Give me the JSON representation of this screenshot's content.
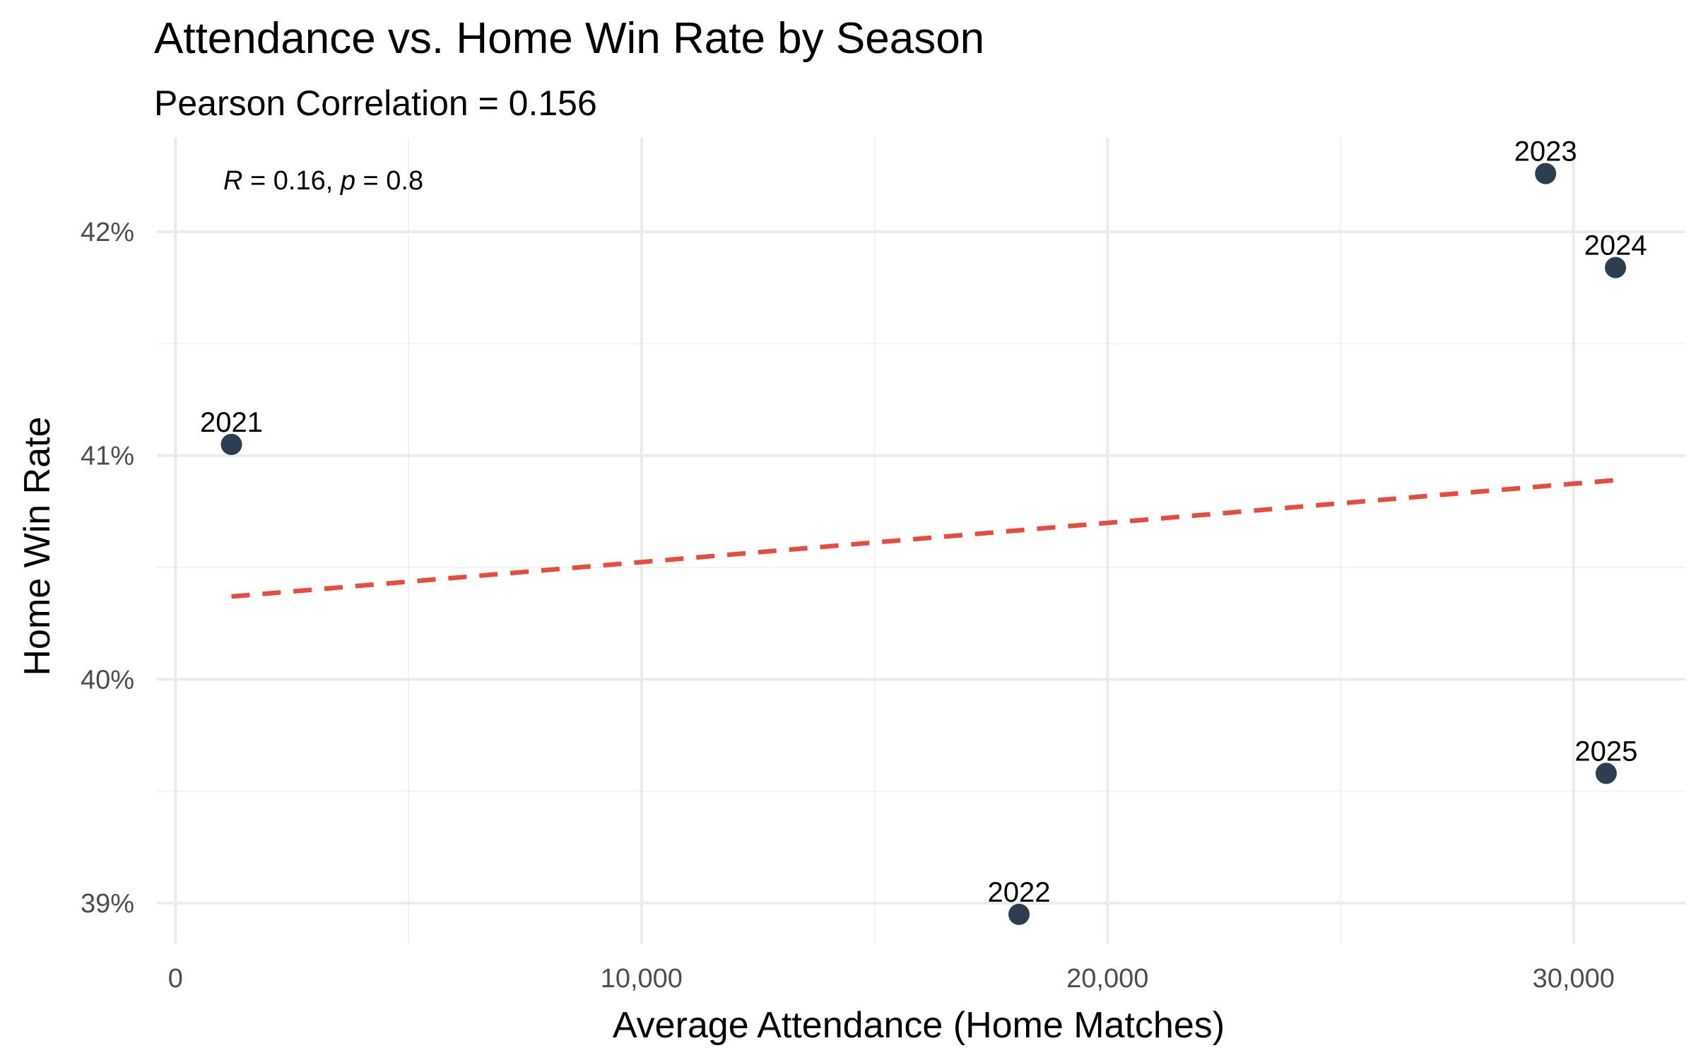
{
  "chart_data": {
    "type": "scatter",
    "title": "Attendance vs. Home Win Rate by Season",
    "subtitle": "Pearson Correlation = 0.156",
    "xlabel": "Average Attendance (Home Matches)",
    "ylabel": "Home Win Rate",
    "xlim": [
      -400,
      32400
    ],
    "ylim": [
      38.82,
      42.42
    ],
    "x_ticks": [
      {
        "value": 0,
        "label": "0"
      },
      {
        "value": 10000,
        "label": "10,000"
      },
      {
        "value": 20000,
        "label": "20,000"
      },
      {
        "value": 30000,
        "label": "30,000"
      }
    ],
    "x_minor_ticks": [
      5000,
      15000,
      25000
    ],
    "y_ticks": [
      {
        "value": 39,
        "label": "39%"
      },
      {
        "value": 40,
        "label": "40%"
      },
      {
        "value": 41,
        "label": "41%"
      },
      {
        "value": 42,
        "label": "42%"
      }
    ],
    "y_minor_ticks": [
      39.5,
      40.5,
      41.5
    ],
    "grid": true,
    "points": [
      {
        "label": "2021",
        "x": 1200,
        "y": 41.05
      },
      {
        "label": "2022",
        "x": 18100,
        "y": 38.95
      },
      {
        "label": "2023",
        "x": 29400,
        "y": 42.26
      },
      {
        "label": "2024",
        "x": 30900,
        "y": 41.84
      },
      {
        "label": "2025",
        "x": 30700,
        "y": 39.58
      }
    ],
    "trend_line": {
      "style": "dashed",
      "x": [
        1200,
        30900
      ],
      "y": [
        40.37,
        40.89
      ]
    },
    "annotation": {
      "r_symbol": "R",
      "r_text": " = 0.16, ",
      "p_symbol": "p",
      "p_text": " = 0.8",
      "position": "top-left"
    },
    "colors": {
      "point": "#2c3e50",
      "trend": "#e74c3c",
      "grid_major": "#ebebeb",
      "grid_minor": "#f2f2f2"
    }
  }
}
